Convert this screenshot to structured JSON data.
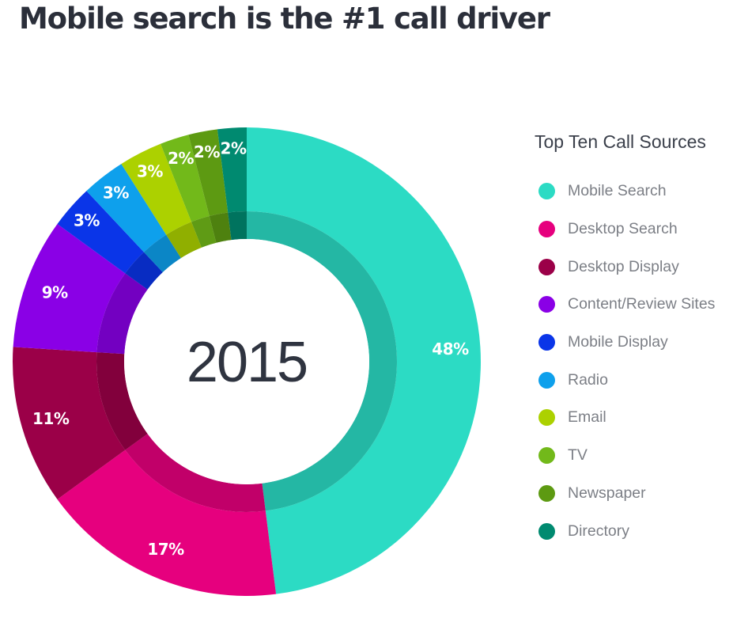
{
  "title": "Mobile search is the #1 call driver",
  "chart_data": {
    "type": "pie",
    "style": "donut",
    "center_label": "2015",
    "legend_title": "Top Ten Call Sources",
    "legend_position": "right",
    "categories": [
      "Mobile Search",
      "Desktop Search",
      "Desktop Display",
      "Content/Review Sites",
      "Mobile Display",
      "Radio",
      "Email",
      "TV",
      "Newspaper",
      "Directory"
    ],
    "values": [
      48,
      17,
      11,
      9,
      3,
      3,
      3,
      2,
      2,
      2
    ],
    "value_labels": [
      "48%",
      "17%",
      "11%",
      "9%",
      "3%",
      "3%",
      "3%",
      "2%",
      "2%",
      "2%"
    ],
    "colors": [
      "#2cdbc4",
      "#e6007e",
      "#9b0048",
      "#8a00e6",
      "#0a35e8",
      "#0ea0ec",
      "#acd100",
      "#72b91a",
      "#5d9a12",
      "#008a70"
    ]
  }
}
